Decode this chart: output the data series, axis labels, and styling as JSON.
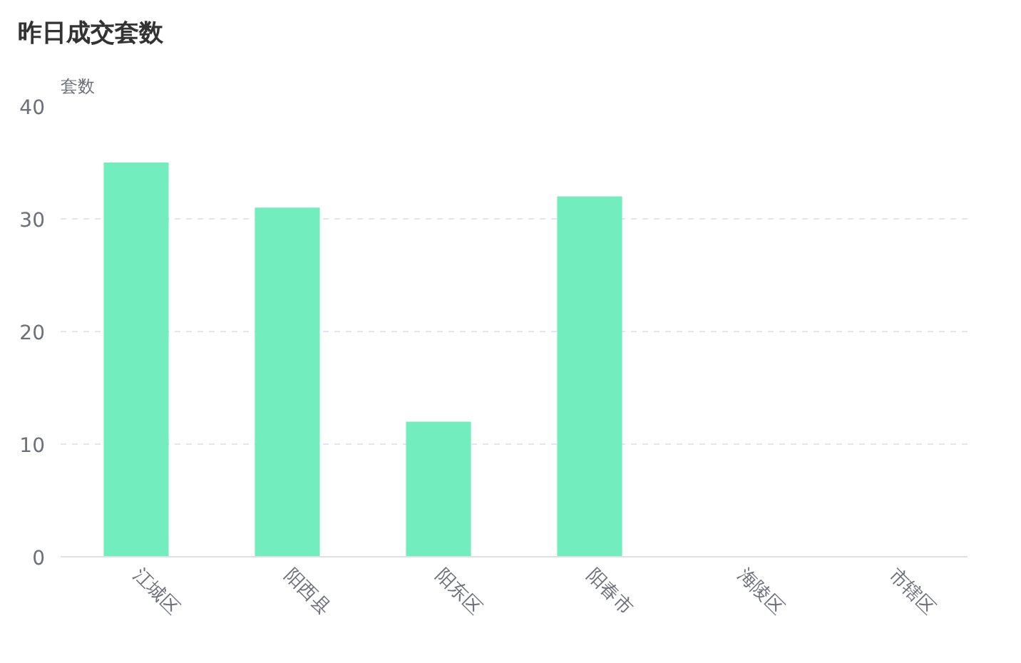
{
  "chart_data": {
    "type": "bar",
    "title": "昨日成交套数",
    "ylabel": "套数",
    "categories": [
      "江城区",
      "阳西县",
      "阳东区",
      "阳春市",
      "海陵区",
      "市辖区"
    ],
    "values": [
      35,
      31,
      12,
      32,
      0,
      0
    ],
    "color": "#72edbe",
    "ylim": [
      0,
      40
    ],
    "yticks": [
      0,
      10,
      20,
      30,
      40
    ],
    "grid": "y"
  }
}
